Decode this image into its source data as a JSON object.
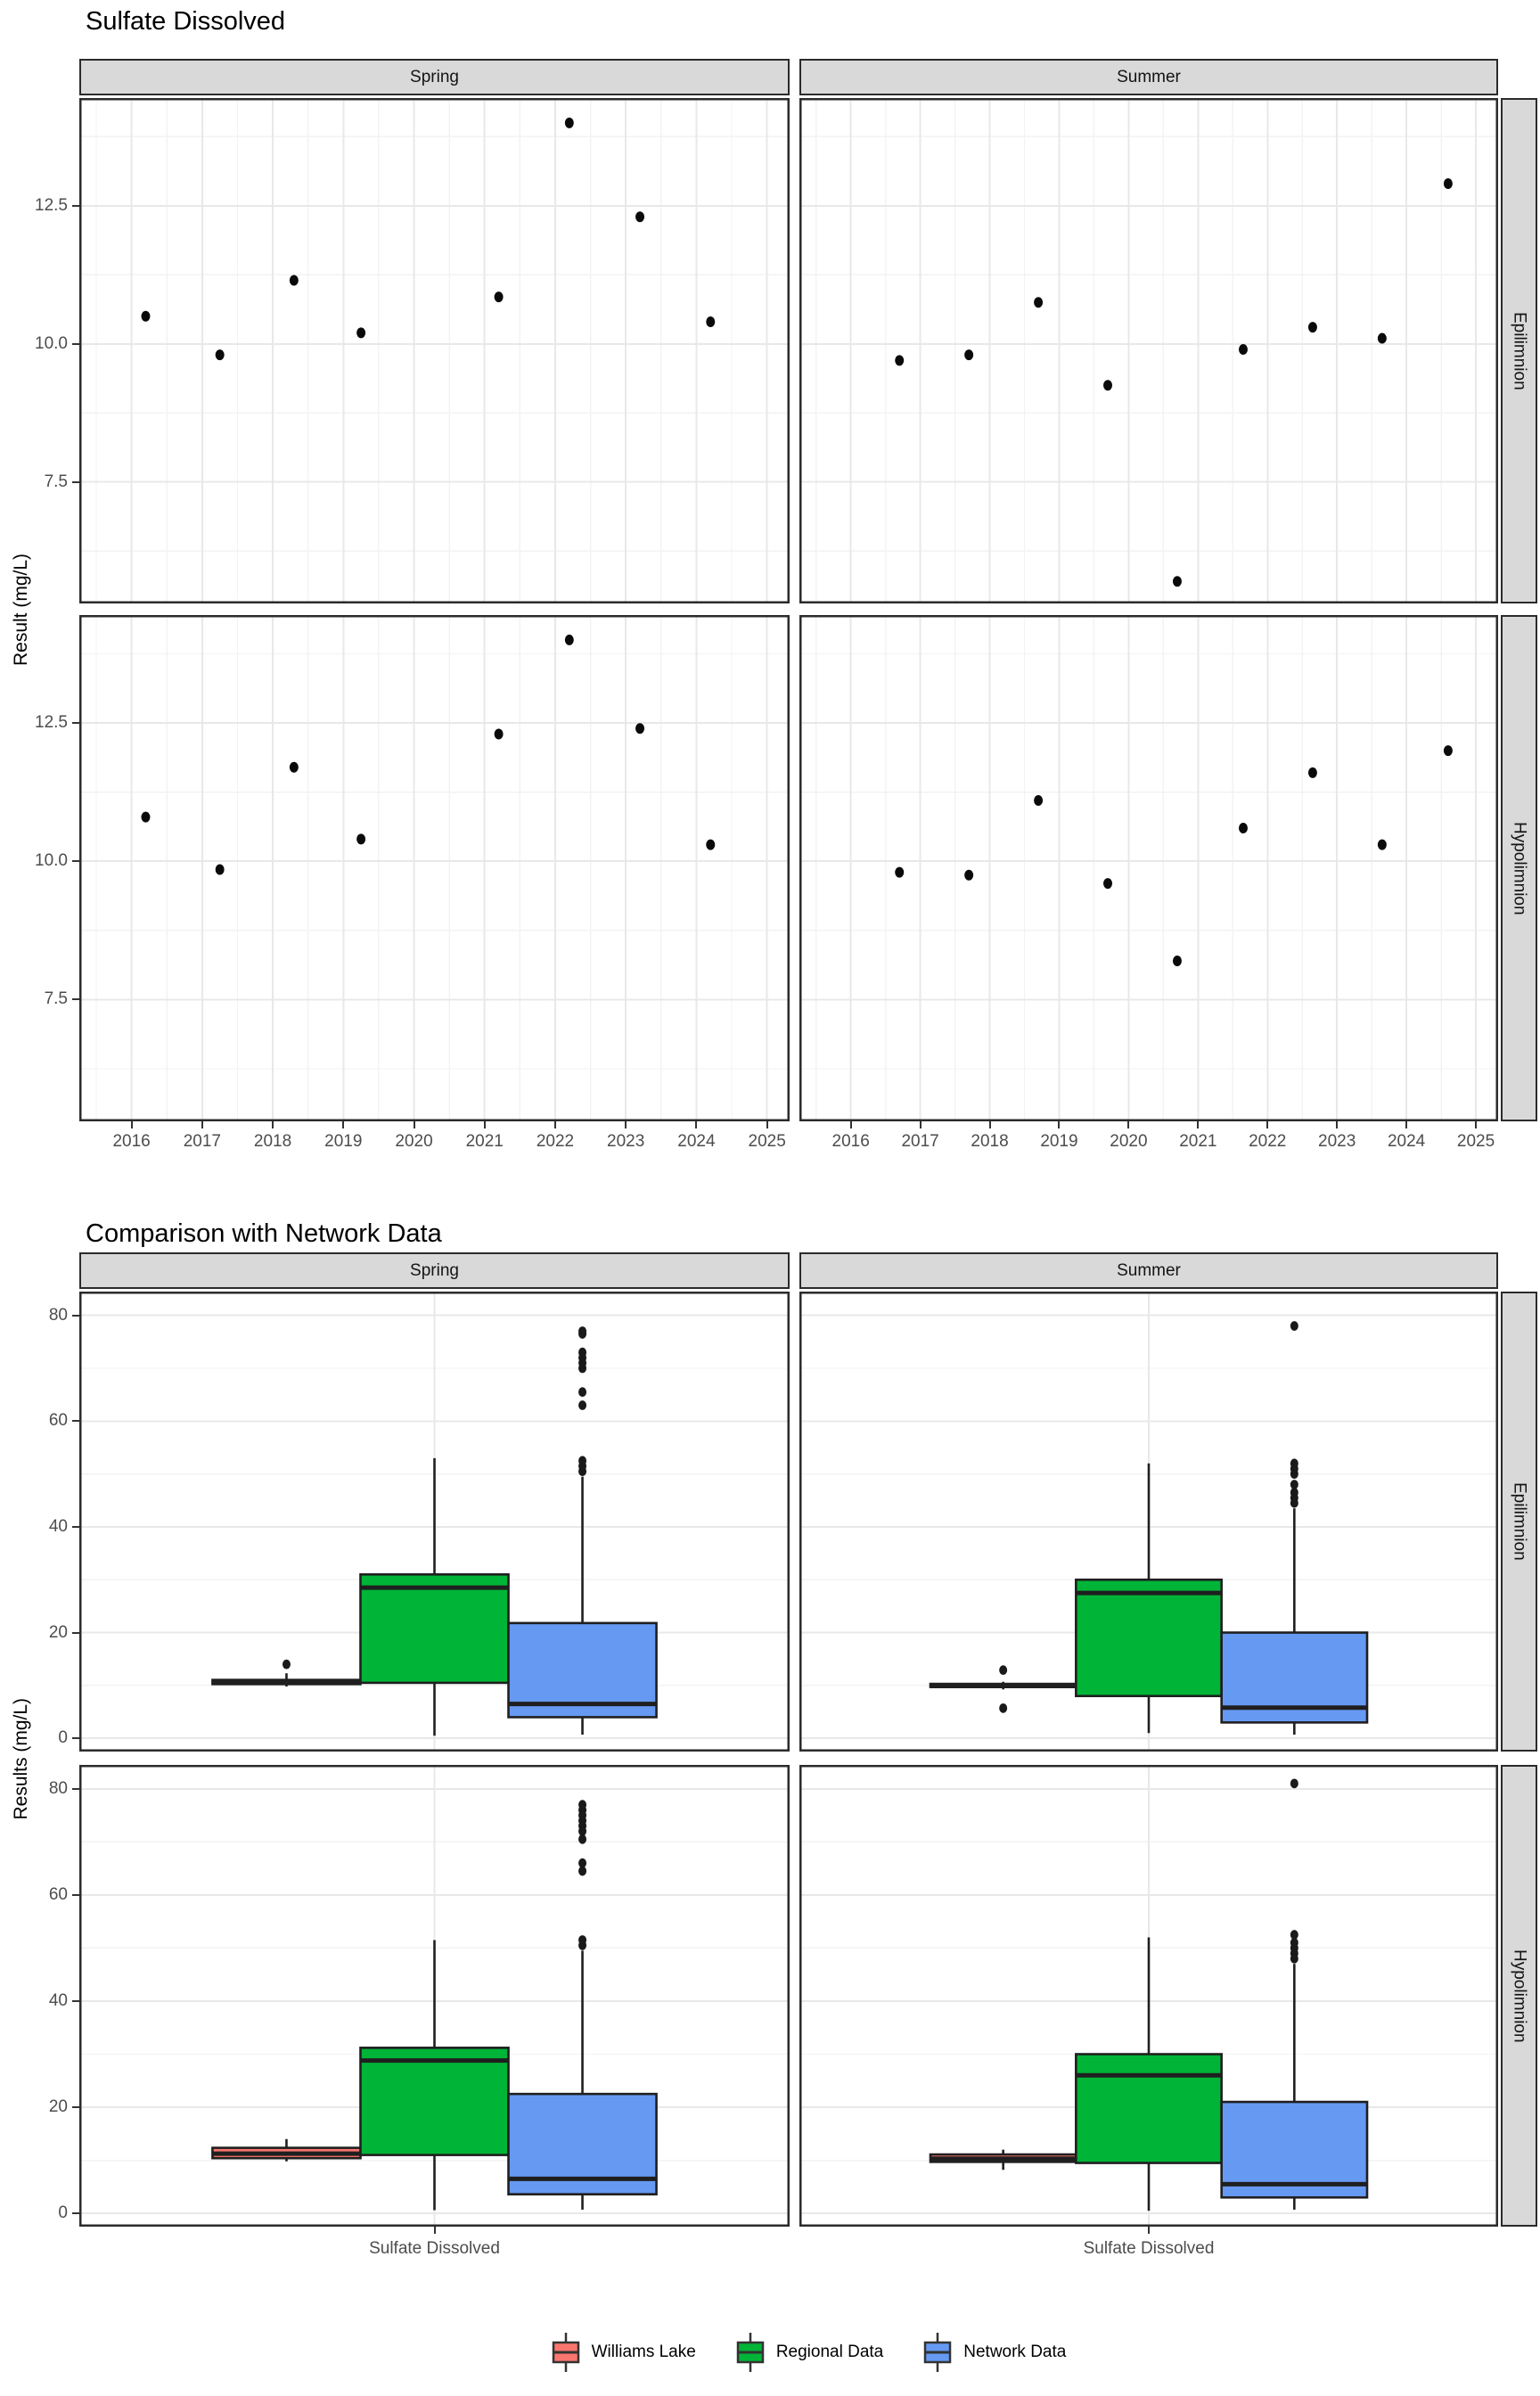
{
  "chart_data": [
    {
      "type": "scatter",
      "title": "Sulfate Dissolved",
      "ylabel": "Result (mg/L)",
      "facet_cols": [
        "Spring",
        "Summer"
      ],
      "facet_rows": [
        "Epilimnion",
        "Hypolimnion"
      ],
      "x_ticks": [
        "2016",
        "2017",
        "2018",
        "2019",
        "2020",
        "2021",
        "2022",
        "2023",
        "2024",
        "2025"
      ],
      "x_tick_values": [
        2016,
        2017,
        2018,
        2019,
        2020,
        2021,
        2022,
        2023,
        2024,
        2025
      ],
      "y_ticks": [
        {
          "v": 12.5,
          "label": "12.5"
        },
        {
          "v": 10,
          "label": "10.0"
        },
        {
          "v": 7.5,
          "label": "7.5"
        }
      ],
      "y_minor": [
        13.75,
        11.25,
        8.75,
        6.25
      ],
      "xlim": [
        2015.26,
        2025.32
      ],
      "ylim": [
        5.3,
        14.45
      ],
      "grid": "major+minor",
      "legend_position": "none",
      "point_color": "#0a0a0a",
      "panels": [
        {
          "row": "Epilimnion",
          "col": "Spring",
          "points": [
            [
              2016.2,
              10.5
            ],
            [
              2017.25,
              9.8
            ],
            [
              2018.3,
              11.15
            ],
            [
              2019.25,
              10.2
            ],
            [
              2021.2,
              10.85
            ],
            [
              2022.2,
              14.0
            ],
            [
              2023.2,
              12.3
            ],
            [
              2024.2,
              10.4
            ]
          ]
        },
        {
          "row": "Epilimnion",
          "col": "Summer",
          "points": [
            [
              2016.7,
              9.7
            ],
            [
              2017.7,
              9.8
            ],
            [
              2018.7,
              10.75
            ],
            [
              2019.7,
              9.25
            ],
            [
              2020.7,
              5.7
            ],
            [
              2021.65,
              9.9
            ],
            [
              2022.65,
              10.3
            ],
            [
              2023.65,
              10.1
            ],
            [
              2024.6,
              12.9
            ]
          ]
        },
        {
          "row": "Hypolimnion",
          "col": "Spring",
          "points": [
            [
              2016.2,
              10.8
            ],
            [
              2017.25,
              9.85
            ],
            [
              2018.3,
              11.7
            ],
            [
              2019.25,
              10.4
            ],
            [
              2021.2,
              12.3
            ],
            [
              2022.2,
              14.0
            ],
            [
              2023.2,
              12.4
            ],
            [
              2024.2,
              10.3
            ]
          ]
        },
        {
          "row": "Hypolimnion",
          "col": "Summer",
          "points": [
            [
              2016.7,
              9.8
            ],
            [
              2017.7,
              9.75
            ],
            [
              2018.7,
              11.1
            ],
            [
              2019.7,
              9.6
            ],
            [
              2020.7,
              8.2
            ],
            [
              2021.65,
              10.6
            ],
            [
              2022.65,
              11.6
            ],
            [
              2023.65,
              10.3
            ],
            [
              2024.6,
              12.0
            ]
          ]
        }
      ]
    },
    {
      "type": "box",
      "title": "Comparison with Network Data",
      "ylabel": "Results (mg/L)",
      "x_category": "Sulfate Dissolved",
      "facet_cols": [
        "Spring",
        "Summer"
      ],
      "facet_rows": [
        "Epilimnion",
        "Hypolimnion"
      ],
      "y_ticks": [
        {
          "v": 80,
          "label": "80"
        },
        {
          "v": 60,
          "label": "60"
        },
        {
          "v": 40,
          "label": "40"
        },
        {
          "v": 20,
          "label": "20"
        },
        {
          "v": 0,
          "label": "0"
        }
      ],
      "y_minor": [
        70,
        50,
        30,
        10
      ],
      "ylim": [
        -2.5,
        84.5
      ],
      "grid": "major+minor",
      "legend_position": "bottom",
      "series": [
        "Williams Lake",
        "Regional Data",
        "Network Data"
      ],
      "colors": {
        "Williams Lake": "#F8766D",
        "Regional Data": "#00B438",
        "Network Data": "#6699F2"
      },
      "panels": [
        {
          "row": "Epilimnion",
          "col": "Spring",
          "boxes": [
            {
              "group": "Williams Lake",
              "low": 9.8,
              "q1": 10.25,
              "median": 10.7,
              "q3": 11.05,
              "high": 12.3,
              "outliers": [
                14.0
              ]
            },
            {
              "group": "Regional Data",
              "low": 0.5,
              "q1": 10.5,
              "median": 28.5,
              "q3": 31.0,
              "high": 53.0,
              "outliers": []
            },
            {
              "group": "Network Data",
              "low": 0.7,
              "q1": 4.0,
              "median": 6.5,
              "q3": 21.8,
              "high": 49.5,
              "outliers": [
                50.5,
                51.5,
                52.5,
                63,
                65.5,
                70,
                71,
                72,
                73,
                76.5,
                77
              ]
            }
          ]
        },
        {
          "row": "Epilimnion",
          "col": "Summer",
          "boxes": [
            {
              "group": "Williams Lake",
              "low": 9.25,
              "q1": 9.7,
              "median": 9.9,
              "q3": 10.3,
              "high": 10.7,
              "outliers": [
                12.9,
                5.7
              ]
            },
            {
              "group": "Regional Data",
              "low": 1.0,
              "q1": 8.0,
              "median": 27.5,
              "q3": 30.0,
              "high": 52.0,
              "outliers": []
            },
            {
              "group": "Network Data",
              "low": 0.7,
              "q1": 3.0,
              "median": 5.8,
              "q3": 20.0,
              "high": 43.5,
              "outliers": [
                44.5,
                45.5,
                46.5,
                48,
                50,
                51,
                52,
                78
              ]
            }
          ]
        },
        {
          "row": "Hypolimnion",
          "col": "Spring",
          "boxes": [
            {
              "group": "Williams Lake",
              "low": 9.8,
              "q1": 10.4,
              "median": 11.25,
              "q3": 12.35,
              "high": 14.0,
              "outliers": []
            },
            {
              "group": "Regional Data",
              "low": 0.6,
              "q1": 11.0,
              "median": 28.8,
              "q3": 31.2,
              "high": 51.5,
              "outliers": []
            },
            {
              "group": "Network Data",
              "low": 0.7,
              "q1": 3.6,
              "median": 6.5,
              "q3": 22.5,
              "high": 49.5,
              "outliers": [
                50.5,
                51.5,
                64.5,
                66,
                70.5,
                72,
                73,
                74,
                75,
                76,
                77
              ]
            }
          ]
        },
        {
          "row": "Hypolimnion",
          "col": "Summer",
          "boxes": [
            {
              "group": "Williams Lake",
              "low": 8.2,
              "q1": 9.7,
              "median": 10.3,
              "q3": 11.1,
              "high": 12.0,
              "outliers": []
            },
            {
              "group": "Regional Data",
              "low": 0.5,
              "q1": 9.5,
              "median": 26.0,
              "q3": 30.0,
              "high": 52.0,
              "outliers": []
            },
            {
              "group": "Network Data",
              "low": 0.7,
              "q1": 3.0,
              "median": 5.5,
              "q3": 21.0,
              "high": 47.0,
              "outliers": [
                48,
                49,
                50,
                51,
                52.5,
                81
              ]
            }
          ]
        }
      ]
    }
  ],
  "legend": {
    "items": [
      {
        "label": "Williams Lake",
        "color": "#F8766D"
      },
      {
        "label": "Regional Data",
        "color": "#00B438"
      },
      {
        "label": "Network Data",
        "color": "#6699F2"
      }
    ]
  }
}
